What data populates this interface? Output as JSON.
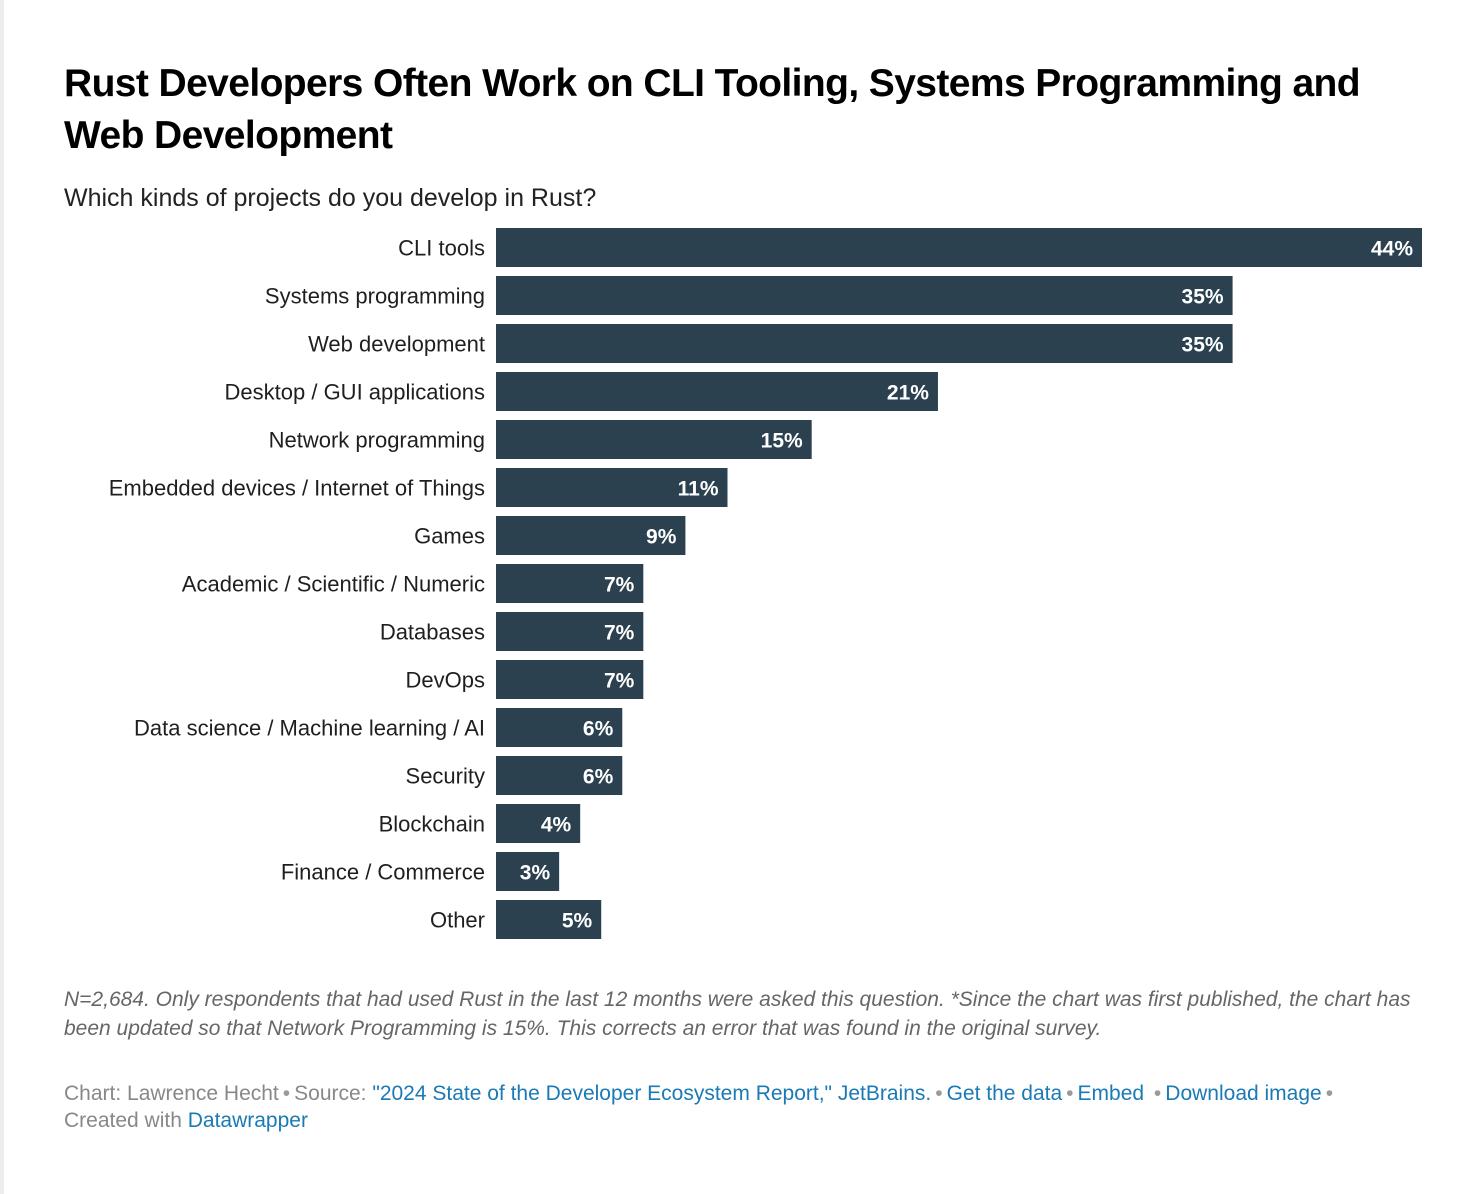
{
  "header": {
    "title": "Rust Developers Often Work on CLI Tooling, Systems Programming and Web Development",
    "subtitle": "Which kinds of projects do you develop in Rust?"
  },
  "colors": {
    "bar": "#2c4150",
    "bar_label": "#ffffff",
    "link": "#1a7ab6",
    "muted": "#888888"
  },
  "chart_data": {
    "type": "bar",
    "orientation": "horizontal",
    "title": "Rust Developers Often Work on CLI Tooling, Systems Programming and Web Development",
    "subtitle": "Which kinds of projects do you develop in Rust?",
    "xlabel": "",
    "ylabel": "",
    "unit": "%",
    "xlim": [
      0,
      44
    ],
    "categories": [
      "CLI tools",
      "Systems programming",
      "Web development",
      "Desktop / GUI applications",
      "Network programming",
      "Embedded devices / Internet of Things",
      "Games",
      "Academic / Scientific / Numeric",
      "Databases",
      "DevOps",
      "Data science / Machine learning / AI",
      "Security",
      "Blockchain",
      "Finance / Commerce",
      "Other"
    ],
    "values": [
      44,
      35,
      35,
      21,
      15,
      11,
      9,
      7,
      7,
      7,
      6,
      6,
      4,
      3,
      5
    ],
    "value_labels": [
      "44%",
      "35%",
      "35%",
      "21%",
      "15%",
      "11%",
      "9%",
      "7%",
      "7%",
      "7%",
      "6%",
      "6%",
      "4%",
      "3%",
      "5%"
    ]
  },
  "notes": "N=2,684. Only respondents that had used Rust in the last 12 months were asked this question. *Since the chart was first published, the chart has been updated so that Network Programming is 15%. This corrects an error that was found in the original survey.",
  "footer": {
    "chart_by": "Chart: Lawrence Hecht",
    "source_label": "Source:",
    "source_link": "\"2024 State of the Developer Ecosystem Report,\" JetBrains.",
    "get_data": "Get the data",
    "embed": "Embed",
    "download": "Download image",
    "created_with": "Created with",
    "datawrapper": "Datawrapper",
    "separator": "•"
  }
}
